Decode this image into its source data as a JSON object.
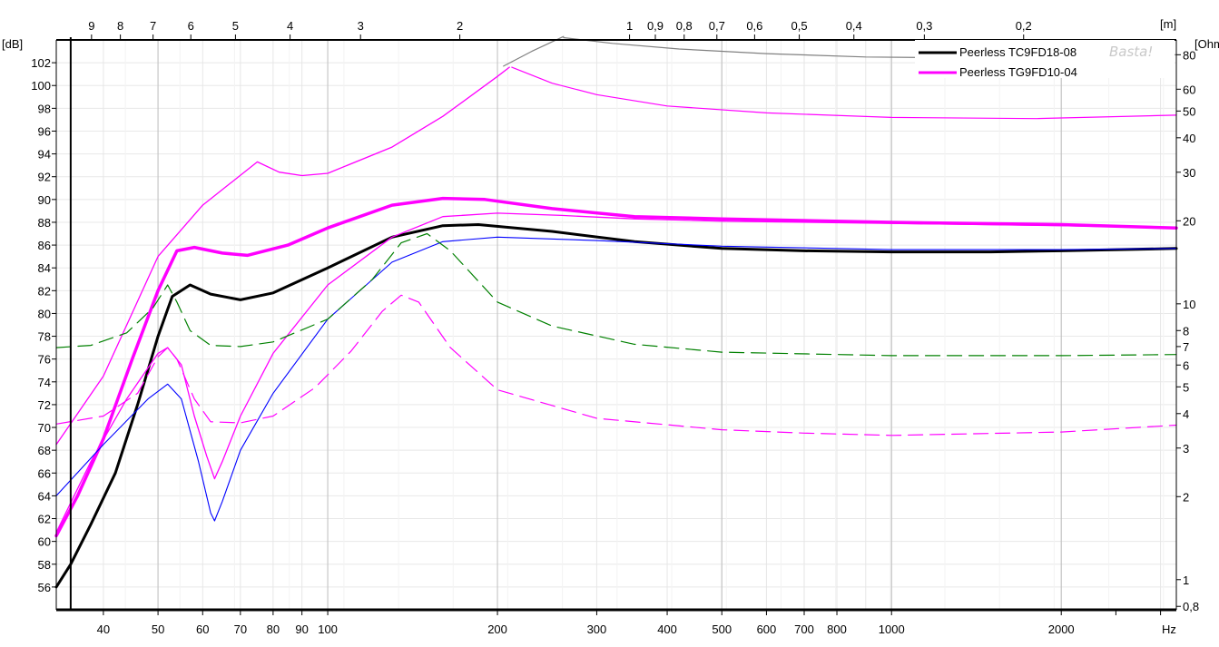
{
  "watermark": "Basta!",
  "chart_data": {
    "type": "line",
    "x_scale": "log",
    "xlim": [
      33,
      3200
    ],
    "ylim": [
      54,
      104
    ],
    "xlabel": "Hz",
    "ylabel_left": "[dB]",
    "ylabel_right": "[Ohm]",
    "top_axis_label": "[m]",
    "x_ticks": [
      {
        "v": 40,
        "label": "40"
      },
      {
        "v": 50,
        "label": "50"
      },
      {
        "v": 60,
        "label": "60"
      },
      {
        "v": 70,
        "label": "70"
      },
      {
        "v": 80,
        "label": "80"
      },
      {
        "v": 90,
        "label": "90"
      },
      {
        "v": 100,
        "label": "100"
      },
      {
        "v": 200,
        "label": "200"
      },
      {
        "v": 300,
        "label": "300"
      },
      {
        "v": 400,
        "label": "400"
      },
      {
        "v": 500,
        "label": "500"
      },
      {
        "v": 600,
        "label": "600"
      },
      {
        "v": 700,
        "label": "700"
      },
      {
        "v": 800,
        "label": "800"
      },
      {
        "v": 1000,
        "label": "1000"
      },
      {
        "v": 2000,
        "label": "2000"
      }
    ],
    "top_ticks": [
      {
        "v": 9,
        "label": "9"
      },
      {
        "v": 8,
        "label": "8"
      },
      {
        "v": 7,
        "label": "7"
      },
      {
        "v": 6,
        "label": "6"
      },
      {
        "v": 5,
        "label": "5"
      },
      {
        "v": 4,
        "label": "4"
      },
      {
        "v": 3,
        "label": "3"
      },
      {
        "v": 2,
        "label": "2"
      },
      {
        "v": 1,
        "label": "1"
      },
      {
        "v": 0.9,
        "label": "0,9"
      },
      {
        "v": 0.8,
        "label": "0,8"
      },
      {
        "v": 0.7,
        "label": "0,7"
      },
      {
        "v": 0.6,
        "label": "0,6"
      },
      {
        "v": 0.5,
        "label": "0,5"
      },
      {
        "v": 0.4,
        "label": "0,4"
      },
      {
        "v": 0.3,
        "label": "0,3"
      },
      {
        "v": 0.2,
        "label": "0,2"
      }
    ],
    "y_ticks": [
      56,
      58,
      60,
      62,
      64,
      66,
      68,
      70,
      72,
      74,
      76,
      78,
      80,
      82,
      84,
      86,
      88,
      90,
      92,
      94,
      96,
      98,
      100,
      102
    ],
    "right_ticks": [
      {
        "v": 0.8,
        "label": "0,8"
      },
      {
        "v": 1,
        "label": "1"
      },
      {
        "v": 2,
        "label": "2"
      },
      {
        "v": 3,
        "label": "3"
      },
      {
        "v": 4,
        "label": "4"
      },
      {
        "v": 5,
        "label": "5"
      },
      {
        "v": 6,
        "label": "6"
      },
      {
        "v": 7,
        "label": "7"
      },
      {
        "v": 8,
        "label": "8"
      },
      {
        "v": 10,
        "label": "10"
      },
      {
        "v": 20,
        "label": "20"
      },
      {
        "v": 30,
        "label": "30"
      },
      {
        "v": 40,
        "label": "40"
      },
      {
        "v": 50,
        "label": "50"
      },
      {
        "v": 60,
        "label": "60"
      },
      {
        "v": 80,
        "label": "80"
      }
    ],
    "right_scale": {
      "type": "log",
      "ohm_ref_low": 0.8,
      "db_at_low": 54.3,
      "ohm_ref_high": 80,
      "db_at_high": 102.7
    },
    "marker_x": 35,
    "legend": {
      "position": "top-right"
    },
    "series": [
      {
        "name": "Peerless TC9FD18-08",
        "axis": "left",
        "color": "#000000",
        "width": 3,
        "dash": "",
        "points": [
          [
            33,
            56
          ],
          [
            35,
            58
          ],
          [
            38,
            61.5
          ],
          [
            42,
            66
          ],
          [
            46,
            72
          ],
          [
            50,
            78
          ],
          [
            53,
            81.5
          ],
          [
            57,
            82.5
          ],
          [
            62,
            81.7
          ],
          [
            70,
            81.2
          ],
          [
            80,
            81.8
          ],
          [
            100,
            84
          ],
          [
            130,
            86.7
          ],
          [
            160,
            87.7
          ],
          [
            185,
            87.8
          ],
          [
            250,
            87.2
          ],
          [
            350,
            86.3
          ],
          [
            500,
            85.7
          ],
          [
            700,
            85.5
          ],
          [
            1000,
            85.4
          ],
          [
            1500,
            85.4
          ],
          [
            2000,
            85.5
          ],
          [
            3200,
            85.7
          ]
        ]
      },
      {
        "name": "Peerless TG9FD10-04",
        "axis": "left",
        "color": "#ff00ff",
        "width": 3.5,
        "dash": "",
        "points": [
          [
            33,
            60.5
          ],
          [
            36,
            64
          ],
          [
            40,
            69
          ],
          [
            45,
            76
          ],
          [
            50,
            82
          ],
          [
            54,
            85.5
          ],
          [
            58,
            85.8
          ],
          [
            65,
            85.3
          ],
          [
            72,
            85.1
          ],
          [
            85,
            86
          ],
          [
            100,
            87.5
          ],
          [
            130,
            89.5
          ],
          [
            160,
            90.1
          ],
          [
            190,
            90
          ],
          [
            250,
            89.2
          ],
          [
            350,
            88.5
          ],
          [
            500,
            88.3
          ],
          [
            1000,
            88
          ],
          [
            2000,
            87.8
          ],
          [
            3200,
            87.5
          ]
        ]
      },
      {
        "name": "",
        "axis": "left",
        "color": "#ff00ff",
        "width": 1.3,
        "dash": "",
        "points": [
          [
            33,
            68.5
          ],
          [
            40,
            74.5
          ],
          [
            50,
            85
          ],
          [
            60,
            89.5
          ],
          [
            75,
            93.3
          ],
          [
            82,
            92.4
          ],
          [
            90,
            92.1
          ],
          [
            100,
            92.3
          ],
          [
            130,
            94.6
          ],
          [
            160,
            97.3
          ],
          [
            200,
            100.8
          ],
          [
            210,
            101.6
          ]
        ]
      },
      {
        "name": "",
        "axis": "left",
        "color": "#808080",
        "width": 1.2,
        "dash": "",
        "points": [
          [
            205,
            101.7
          ],
          [
            230,
            103
          ],
          [
            262,
            104.3
          ]
        ]
      },
      {
        "name": "",
        "axis": "right",
        "color": "#808080",
        "width": 1.2,
        "dash": "",
        "points": [
          [
            262,
            104.2
          ],
          [
            320,
            103.7
          ],
          [
            420,
            103.2
          ],
          [
            600,
            102.8
          ],
          [
            900,
            102.5
          ],
          [
            1500,
            102.4
          ],
          [
            2200,
            102.5
          ],
          [
            3200,
            102.7
          ]
        ]
      },
      {
        "name": "",
        "axis": "right",
        "color": "#ff00ff",
        "width": 1.2,
        "dash": "",
        "points": [
          [
            212,
            101.6
          ],
          [
            250,
            100.2
          ],
          [
            300,
            99.2
          ],
          [
            400,
            98.2
          ],
          [
            600,
            97.6
          ],
          [
            1000,
            97.2
          ],
          [
            1800,
            97.1
          ],
          [
            3200,
            97.4
          ]
        ]
      },
      {
        "name": "",
        "axis": "left",
        "color": "#ff00ff",
        "width": 1.3,
        "dash": "",
        "points": [
          [
            33,
            60.8
          ],
          [
            38,
            67
          ],
          [
            44,
            72.5
          ],
          [
            50,
            76.5
          ],
          [
            52,
            77
          ],
          [
            55,
            75.5
          ],
          [
            58,
            71
          ],
          [
            61,
            67.5
          ],
          [
            63,
            65.5
          ],
          [
            65,
            67
          ],
          [
            70,
            71
          ],
          [
            80,
            76.5
          ],
          [
            100,
            82.5
          ],
          [
            130,
            86.7
          ],
          [
            160,
            88.5
          ],
          [
            200,
            88.8
          ],
          [
            260,
            88.6
          ],
          [
            350,
            88.3
          ],
          [
            500,
            88.1
          ],
          [
            1000,
            87.9
          ],
          [
            2000,
            87.7
          ],
          [
            3200,
            87.5
          ]
        ]
      },
      {
        "name": "",
        "axis": "left",
        "color": "#0000ff",
        "width": 1.1,
        "dash": "",
        "points": [
          [
            33,
            64
          ],
          [
            40,
            68.5
          ],
          [
            48,
            72.5
          ],
          [
            52,
            73.8
          ],
          [
            55,
            72.5
          ],
          [
            59,
            67
          ],
          [
            62,
            62.5
          ],
          [
            63,
            61.8
          ],
          [
            65,
            63.5
          ],
          [
            70,
            68
          ],
          [
            80,
            73
          ],
          [
            100,
            79.5
          ],
          [
            130,
            84.5
          ],
          [
            160,
            86.3
          ],
          [
            200,
            86.7
          ],
          [
            300,
            86.4
          ],
          [
            500,
            85.9
          ],
          [
            1000,
            85.6
          ],
          [
            2000,
            85.6
          ],
          [
            3200,
            85.7
          ]
        ]
      },
      {
        "name": "",
        "axis": "right",
        "color": "#008000",
        "width": 1.2,
        "dash": "16 8",
        "points": [
          [
            33,
            77
          ],
          [
            38,
            77.2
          ],
          [
            44,
            78.3
          ],
          [
            49,
            80.5
          ],
          [
            52,
            82.5
          ],
          [
            54,
            81
          ],
          [
            57,
            78.5
          ],
          [
            62,
            77.2
          ],
          [
            70,
            77.1
          ],
          [
            80,
            77.5
          ],
          [
            100,
            79.5
          ],
          [
            120,
            83
          ],
          [
            135,
            86.2
          ],
          [
            150,
            87
          ],
          [
            165,
            85.5
          ],
          [
            200,
            81
          ],
          [
            250,
            78.9
          ],
          [
            350,
            77.3
          ],
          [
            500,
            76.6
          ],
          [
            1000,
            76.3
          ],
          [
            2000,
            76.3
          ],
          [
            3200,
            76.4
          ]
        ]
      },
      {
        "name": "",
        "axis": "right",
        "color": "#ff00ff",
        "width": 1.2,
        "dash": "16 8",
        "points": [
          [
            33,
            70.3
          ],
          [
            40,
            71
          ],
          [
            46,
            73
          ],
          [
            50,
            76.2
          ],
          [
            52,
            77
          ],
          [
            54,
            76
          ],
          [
            58,
            72.5
          ],
          [
            62,
            70.5
          ],
          [
            70,
            70.4
          ],
          [
            80,
            71
          ],
          [
            95,
            73.5
          ],
          [
            110,
            76.7
          ],
          [
            125,
            80.2
          ],
          [
            135,
            81.6
          ],
          [
            145,
            81
          ],
          [
            165,
            77
          ],
          [
            200,
            73.3
          ],
          [
            300,
            70.8
          ],
          [
            500,
            69.8
          ],
          [
            700,
            69.5
          ],
          [
            1000,
            69.3
          ],
          [
            2000,
            69.6
          ],
          [
            3200,
            70.2
          ]
        ]
      }
    ]
  }
}
